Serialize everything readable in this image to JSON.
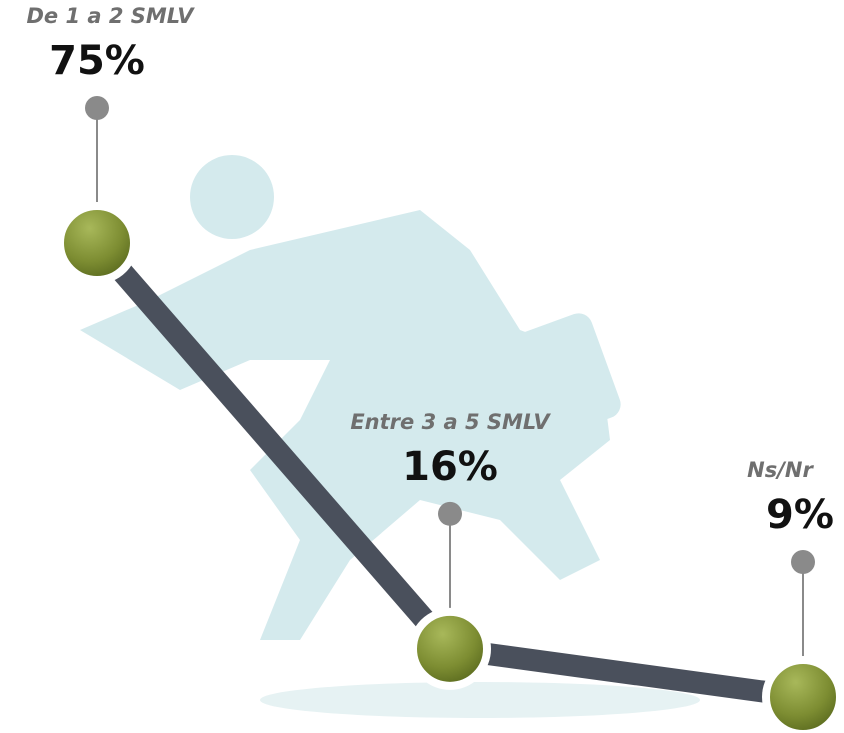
{
  "chart_data": {
    "type": "line",
    "categories": [
      "De 1 a 2 SMLV",
      "Entre 3 a 5 SMLV",
      "Ns/Nr"
    ],
    "values": [
      75,
      16,
      9
    ],
    "value_labels": [
      "75%",
      "16%",
      "9%"
    ],
    "color": "#4a505c",
    "marker_color": "#7a8a30"
  }
}
